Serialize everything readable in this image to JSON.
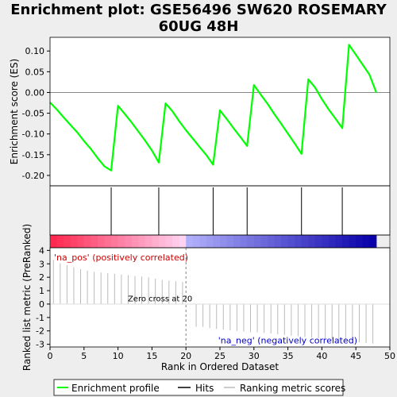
{
  "title_line1": "Enrichment plot: GSE56496 SW620 ROSEMARY",
  "title_line2": "60UG 48H",
  "chart_data": {
    "type": "line",
    "title": "Enrichment plot: GSE56496 SW620 ROSEMARY 60UG 48H",
    "xlabel": "Rank in Ordered Dataset",
    "xlim": [
      0,
      50
    ],
    "x_ticks": [
      0,
      5,
      10,
      15,
      20,
      25,
      30,
      35,
      40,
      45,
      50
    ],
    "es_panel": {
      "ylabel": "Enrichment score (ES)",
      "ylim": [
        -0.225,
        0.133
      ],
      "y_ticks": [
        -0.2,
        -0.15,
        -0.1,
        -0.05,
        0.0,
        0.05,
        0.1
      ],
      "y_tick_labels": [
        "-0.20",
        "-0.15",
        "-0.10",
        "-0.05",
        "0.00",
        "0.05",
        "0.10"
      ],
      "series": [
        {
          "x": [
            0,
            1,
            2,
            3,
            4,
            5,
            6,
            7,
            8,
            9,
            10,
            11,
            12,
            13,
            14,
            15,
            16,
            17,
            18,
            19,
            20,
            21,
            22,
            23,
            24,
            25,
            26,
            27,
            28,
            29,
            30,
            31,
            32,
            33,
            34,
            35,
            36,
            37,
            38,
            39,
            40,
            41,
            42,
            43,
            44,
            45,
            46,
            47,
            48
          ],
          "y": [
            -0.024,
            -0.041,
            -0.06,
            -0.078,
            -0.096,
            -0.117,
            -0.136,
            -0.158,
            -0.178,
            -0.188,
            -0.032,
            -0.052,
            -0.072,
            -0.094,
            -0.116,
            -0.14,
            -0.169,
            -0.026,
            -0.045,
            -0.069,
            -0.091,
            -0.111,
            -0.131,
            -0.151,
            -0.174,
            -0.043,
            -0.064,
            -0.086,
            -0.107,
            -0.129,
            0.018,
            -0.005,
            -0.027,
            -0.052,
            -0.075,
            -0.099,
            -0.123,
            -0.148,
            0.032,
            0.012,
            -0.016,
            -0.041,
            -0.063,
            -0.086,
            0.115,
            0.091,
            0.067,
            0.043,
            0.0
          ]
        }
      ]
    },
    "hits": [
      9,
      16,
      24,
      29,
      37,
      43
    ],
    "metric_panel": {
      "ylabel": "Ranked list metric (PreRanked)",
      "ylim": [
        -3.2,
        4.2
      ],
      "y_ticks": [
        -3,
        -2,
        -1,
        0,
        1,
        2,
        3,
        4
      ],
      "y_tick_labels": [
        "-3",
        "-2",
        "-1",
        "0",
        "1",
        "2",
        "3",
        "4"
      ],
      "values": [
        3.3,
        3.05,
        2.9,
        2.75,
        2.6,
        2.5,
        2.4,
        2.35,
        2.3,
        2.25,
        2.2,
        2.15,
        2.1,
        2.05,
        2.0,
        1.9,
        1.8,
        1.75,
        1.7,
        1.65,
        0.0,
        -1.7,
        -1.7,
        -1.8,
        -1.85,
        -1.9,
        -1.95,
        -2.0,
        -2.05,
        -2.1,
        -2.1,
        -2.15,
        -2.2,
        -2.25,
        -2.3,
        -2.35,
        -2.4,
        -2.45,
        -2.5,
        -2.55,
        -2.6,
        -2.65,
        -2.7,
        -2.75,
        -2.8,
        -2.85,
        -2.9,
        -2.95
      ],
      "zero_cross": 20,
      "zero_cross_label": "Zero cross at 20",
      "pos_label": "'na_pos' (positively correlated)",
      "neg_label": "'na_neg' (negatively correlated)"
    },
    "legend": {
      "placement": "bottom",
      "entries": [
        {
          "label": "Enrichment profile",
          "color": "#00ff00"
        },
        {
          "label": "Hits",
          "color": "#000000"
        },
        {
          "label": "Ranking metric scores",
          "color": "#bbbbbb"
        }
      ]
    },
    "colors": {
      "profile": "#00ff00",
      "pos_label": "#cc0000",
      "neg_label": "#0000cc",
      "grid_zero": "#888888"
    }
  }
}
